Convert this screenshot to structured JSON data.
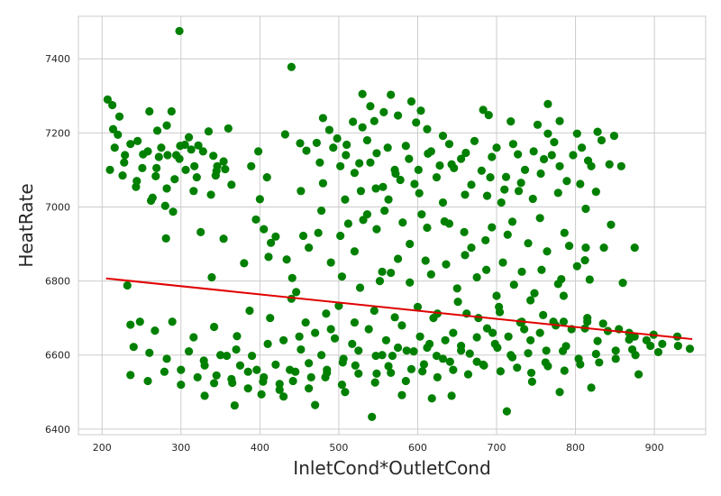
{
  "chart_data": {
    "type": "scatter",
    "title": "",
    "xlabel": "InletCond*OutletCond",
    "ylabel": "HeatRate",
    "xlim": [
      170,
      965
    ],
    "ylim": [
      6385,
      7515
    ],
    "x_ticks": [
      200,
      300,
      400,
      500,
      600,
      700,
      800,
      900
    ],
    "y_ticks": [
      6400,
      6600,
      6800,
      7000,
      7200,
      7400
    ],
    "grid": true,
    "colors": {
      "points": "#008000",
      "trend": "#e00000",
      "grid": "#cccccc",
      "frame": "#cccccc"
    },
    "points": [
      [
        298,
        7475
      ],
      [
        440,
        7378
      ],
      [
        530,
        7305
      ],
      [
        566,
        7303
      ],
      [
        540,
        7272
      ],
      [
        592,
        7285
      ],
      [
        765,
        7278
      ],
      [
        683,
        7262
      ],
      [
        604,
        7260
      ],
      [
        207,
        7290
      ],
      [
        213,
        7275
      ],
      [
        260,
        7258
      ],
      [
        288,
        7258
      ],
      [
        480,
        7240
      ],
      [
        488,
        7208
      ],
      [
        530,
        7215
      ],
      [
        557,
        7256
      ],
      [
        575,
        7247
      ],
      [
        498,
        7185
      ],
      [
        518,
        7230
      ],
      [
        545,
        7232
      ],
      [
        598,
        7228
      ],
      [
        612,
        7210
      ],
      [
        632,
        7192
      ],
      [
        690,
        7248
      ],
      [
        718,
        7231
      ],
      [
        752,
        7222
      ],
      [
        780,
        7232
      ],
      [
        765,
        7198
      ],
      [
        802,
        7198
      ],
      [
        828,
        7203
      ],
      [
        849,
        7192
      ],
      [
        222,
        7244
      ],
      [
        245,
        7178
      ],
      [
        270,
        7206
      ],
      [
        282,
        7220
      ],
      [
        310,
        7188
      ],
      [
        335,
        7204
      ],
      [
        360,
        7212
      ],
      [
        398,
        7150
      ],
      [
        432,
        7196
      ],
      [
        451,
        7172
      ],
      [
        472,
        7173
      ],
      [
        510,
        7168
      ],
      [
        548,
        7145
      ],
      [
        585,
        7165
      ],
      [
        613,
        7144
      ],
      [
        640,
        7170
      ],
      [
        661,
        7146
      ],
      [
        700,
        7160
      ],
      [
        727,
        7142
      ],
      [
        770,
        7140
      ],
      [
        808,
        7160
      ],
      [
        216,
        7160
      ],
      [
        228,
        7120
      ],
      [
        252,
        7142
      ],
      [
        269,
        7105
      ],
      [
        283,
        7140
      ],
      [
        298,
        7130
      ],
      [
        306,
        7100
      ],
      [
        322,
        7166
      ],
      [
        345,
        7097
      ],
      [
        354,
        7123
      ],
      [
        502,
        7110
      ],
      [
        520,
        7092
      ],
      [
        540,
        7120
      ],
      [
        572,
        7090
      ],
      [
        601,
        7100
      ],
      [
        628,
        7112
      ],
      [
        655,
        7130
      ],
      [
        681,
        7098
      ],
      [
        712,
        7081
      ],
      [
        736,
        7100
      ],
      [
        760,
        7129
      ],
      [
        780,
        7110
      ],
      [
        820,
        7110
      ],
      [
        843,
        7115
      ],
      [
        243,
        7054
      ],
      [
        268,
        7083
      ],
      [
        292,
        7075
      ],
      [
        316,
        7043
      ],
      [
        338,
        7033
      ],
      [
        400,
        7021
      ],
      [
        452,
        7043
      ],
      [
        480,
        7064
      ],
      [
        508,
        7020
      ],
      [
        528,
        7043
      ],
      [
        556,
        7054
      ],
      [
        578,
        7073
      ],
      [
        602,
        7037
      ],
      [
        632,
        7012
      ],
      [
        660,
        7033
      ],
      [
        688,
        7030
      ],
      [
        706,
        7012
      ],
      [
        728,
        7043
      ],
      [
        746,
        7022
      ],
      [
        778,
        7038
      ],
      [
        806,
        7062
      ],
      [
        826,
        7041
      ],
      [
        262,
        7017
      ],
      [
        280,
        7003
      ],
      [
        290,
        6987
      ],
      [
        325,
        6932
      ],
      [
        354,
        6914
      ],
      [
        395,
        6966
      ],
      [
        414,
        6903
      ],
      [
        434,
        6858
      ],
      [
        455,
        6922
      ],
      [
        474,
        6930
      ],
      [
        502,
        6922
      ],
      [
        531,
        6965
      ],
      [
        548,
        6940
      ],
      [
        581,
        6958
      ],
      [
        612,
        6944
      ],
      [
        634,
        6961
      ],
      [
        659,
        6932
      ],
      [
        686,
        6910
      ],
      [
        714,
        6925
      ],
      [
        740,
        6902
      ],
      [
        764,
        6880
      ],
      [
        792,
        6895
      ],
      [
        812,
        6856
      ],
      [
        845,
        6952
      ],
      [
        875,
        6890
      ],
      [
        232,
        6788
      ],
      [
        281,
        6915
      ],
      [
        339,
        6810
      ],
      [
        380,
        6848
      ],
      [
        411,
        6865
      ],
      [
        446,
        6770
      ],
      [
        504,
        6812
      ],
      [
        527,
        6782
      ],
      [
        552,
        6800
      ],
      [
        566,
        6822
      ],
      [
        590,
        6796
      ],
      [
        617,
        6818
      ],
      [
        650,
        6780
      ],
      [
        675,
        6810
      ],
      [
        700,
        6760
      ],
      [
        722,
        6790
      ],
      [
        748,
        6767
      ],
      [
        778,
        6792
      ],
      [
        818,
        6804
      ],
      [
        860,
        6795
      ],
      [
        236,
        6682
      ],
      [
        248,
        6690
      ],
      [
        267,
        6666
      ],
      [
        289,
        6690
      ],
      [
        316,
        6648
      ],
      [
        342,
        6676
      ],
      [
        371,
        6651
      ],
      [
        387,
        6720
      ],
      [
        413,
        6700
      ],
      [
        440,
        6752
      ],
      [
        458,
        6688
      ],
      [
        484,
        6712
      ],
      [
        500,
        6733
      ],
      [
        520,
        6688
      ],
      [
        545,
        6720
      ],
      [
        571,
        6702
      ],
      [
        600,
        6730
      ],
      [
        625,
        6712
      ],
      [
        651,
        6744
      ],
      [
        677,
        6700
      ],
      [
        704,
        6716
      ],
      [
        732,
        6690
      ],
      [
        759,
        6708
      ],
      [
        785,
        6690
      ],
      [
        812,
        6672
      ],
      [
        841,
        6665
      ],
      [
        868,
        6660
      ],
      [
        899,
        6655
      ],
      [
        929,
        6650
      ],
      [
        945,
        6617
      ],
      [
        240,
        6622
      ],
      [
        260,
        6606
      ],
      [
        282,
        6590
      ],
      [
        310,
        6610
      ],
      [
        329,
        6585
      ],
      [
        358,
        6598
      ],
      [
        375,
        6572
      ],
      [
        396,
        6560
      ],
      [
        420,
        6574
      ],
      [
        438,
        6560
      ],
      [
        462,
        6578
      ],
      [
        485,
        6552
      ],
      [
        506,
        6590
      ],
      [
        521,
        6572
      ],
      [
        547,
        6598
      ],
      [
        563,
        6570
      ],
      [
        586,
        6612
      ],
      [
        608,
        6575
      ],
      [
        624,
        6598
      ],
      [
        641,
        6582
      ],
      [
        666,
        6604
      ],
      [
        683,
        6574
      ],
      [
        701,
        6620
      ],
      [
        720,
        6594
      ],
      [
        740,
        6605
      ],
      [
        762,
        6580
      ],
      [
        784,
        6611
      ],
      [
        804,
        6590
      ],
      [
        826,
        6603
      ],
      [
        851,
        6612
      ],
      [
        872,
        6615
      ],
      [
        895,
        6625
      ],
      [
        236,
        6546
      ],
      [
        258,
        6530
      ],
      [
        279,
        6555
      ],
      [
        300,
        6520
      ],
      [
        321,
        6540
      ],
      [
        342,
        6524
      ],
      [
        364,
        6535
      ],
      [
        385,
        6510
      ],
      [
        404,
        6528
      ],
      [
        425,
        6506
      ],
      [
        442,
        6530
      ],
      [
        462,
        6510
      ],
      [
        483,
        6540
      ],
      [
        504,
        6520
      ],
      [
        525,
        6550
      ],
      [
        546,
        6526
      ],
      [
        566,
        6552
      ],
      [
        585,
        6530
      ],
      [
        606,
        6556
      ],
      [
        625,
        6540
      ],
      [
        645,
        6560
      ],
      [
        664,
        6548
      ],
      [
        684,
        6572
      ],
      [
        705,
        6556
      ],
      [
        726,
        6566
      ],
      [
        744,
        6552
      ],
      [
        765,
        6570
      ],
      [
        786,
        6558
      ],
      [
        806,
        6575
      ],
      [
        830,
        6580
      ],
      [
        851,
        6590
      ],
      [
        876,
        6600
      ],
      [
        905,
        6608
      ],
      [
        330,
        6490
      ],
      [
        368,
        6464
      ],
      [
        402,
        6494
      ],
      [
        430,
        6488
      ],
      [
        470,
        6465
      ],
      [
        508,
        6500
      ],
      [
        542,
        6433
      ],
      [
        580,
        6492
      ],
      [
        618,
        6483
      ],
      [
        643,
        6490
      ],
      [
        713,
        6448
      ],
      [
        780,
        6500
      ],
      [
        820,
        6512
      ],
      [
        880,
        6548
      ],
      [
        745,
        6528
      ],
      [
        505,
        6580
      ],
      [
        548,
        6550
      ],
      [
        592,
        6562
      ],
      [
        632,
        6590
      ],
      [
        675,
        6582
      ],
      [
        718,
        6600
      ],
      [
        763,
        6612
      ],
      [
        525,
        6612
      ],
      [
        568,
        6598
      ],
      [
        612,
        6620
      ],
      [
        655,
        6612
      ],
      [
        698,
        6630
      ],
      [
        743,
        6640
      ],
      [
        788,
        6624
      ],
      [
        828,
        6638
      ],
      [
        868,
        6642
      ],
      [
        478,
        6600
      ],
      [
        517,
        6630
      ],
      [
        560,
        6640
      ],
      [
        603,
        6650
      ],
      [
        645,
        6660
      ],
      [
        688,
        6672
      ],
      [
        730,
        6688
      ],
      [
        772,
        6690
      ],
      [
        815,
        6700
      ],
      [
        452,
        6615
      ],
      [
        495,
        6645
      ],
      [
        538,
        6670
      ],
      [
        580,
        6680
      ],
      [
        620,
        6700
      ],
      [
        662,
        6712
      ],
      [
        703,
        6730
      ],
      [
        743,
        6748
      ],
      [
        785,
        6760
      ],
      [
        300,
        6560
      ],
      [
        330,
        6572
      ],
      [
        350,
        6600
      ],
      [
        370,
        6615
      ],
      [
        390,
        6598
      ],
      [
        410,
        6630
      ],
      [
        430,
        6640
      ],
      [
        450,
        6650
      ],
      [
        470,
        6660
      ],
      [
        490,
        6670
      ],
      [
        345,
        6545
      ],
      [
        365,
        6525
      ],
      [
        385,
        6555
      ],
      [
        405,
        6540
      ],
      [
        425,
        6522
      ],
      [
        445,
        6555
      ],
      [
        465,
        6540
      ],
      [
        485,
        6560
      ],
      [
        555,
        6600
      ],
      [
        575,
        6620
      ],
      [
        595,
        6610
      ],
      [
        615,
        6630
      ],
      [
        635,
        6640
      ],
      [
        655,
        6625
      ],
      [
        675,
        6648
      ],
      [
        695,
        6660
      ],
      [
        715,
        6650
      ],
      [
        735,
        6670
      ],
      [
        755,
        6660
      ],
      [
        775,
        6680
      ],
      [
        795,
        6670
      ],
      [
        815,
        6690
      ],
      [
        835,
        6685
      ],
      [
        855,
        6670
      ],
      [
        875,
        6650
      ],
      [
        890,
        6640
      ],
      [
        910,
        6630
      ],
      [
        930,
        6625
      ],
      [
        214,
        7210
      ],
      [
        220,
        7195
      ],
      [
        236,
        7170
      ],
      [
        258,
        7150
      ],
      [
        275,
        7160
      ],
      [
        294,
        7140
      ],
      [
        305,
        7168
      ],
      [
        317,
        7110
      ],
      [
        328,
        7150
      ],
      [
        341,
        7138
      ],
      [
        356,
        7102
      ],
      [
        229,
        7140
      ],
      [
        251,
        7105
      ],
      [
        272,
        7135
      ],
      [
        299,
        7165
      ],
      [
        313,
        7155
      ],
      [
        346,
        7110
      ],
      [
        459,
        7152
      ],
      [
        476,
        7120
      ],
      [
        493,
        7160
      ],
      [
        509,
        7140
      ],
      [
        526,
        7118
      ],
      [
        536,
        7180
      ],
      [
        562,
        7160
      ],
      [
        589,
        7130
      ],
      [
        617,
        7150
      ],
      [
        643,
        7115
      ],
      [
        672,
        7178
      ],
      [
        694,
        7135
      ],
      [
        721,
        7170
      ],
      [
        747,
        7150
      ],
      [
        773,
        7175
      ],
      [
        797,
        7140
      ],
      [
        816,
        7125
      ],
      [
        833,
        7180
      ],
      [
        858,
        7110
      ],
      [
        547,
        7050
      ],
      [
        563,
        7020
      ],
      [
        571,
        7100
      ],
      [
        596,
        7062
      ],
      [
        624,
        7080
      ],
      [
        646,
        7105
      ],
      [
        668,
        7060
      ],
      [
        692,
        7080
      ],
      [
        710,
        7047
      ],
      [
        731,
        7065
      ],
      [
        756,
        7090
      ],
      [
        789,
        7070
      ],
      [
        813,
        6995
      ],
      [
        478,
        6990
      ],
      [
        512,
        6955
      ],
      [
        536,
        6980
      ],
      [
        558,
        6990
      ],
      [
        590,
        6900
      ],
      [
        605,
        6980
      ],
      [
        640,
        6955
      ],
      [
        668,
        6890
      ],
      [
        694,
        6945
      ],
      [
        720,
        6960
      ],
      [
        755,
        6970
      ],
      [
        786,
        6930
      ],
      [
        813,
        6890
      ],
      [
        836,
        6890
      ],
      [
        210,
        7100
      ],
      [
        226,
        7085
      ],
      [
        244,
        7070
      ],
      [
        264,
        7025
      ],
      [
        282,
        7050
      ],
      [
        320,
        7080
      ],
      [
        344,
        7085
      ],
      [
        364,
        7060
      ],
      [
        389,
        7110
      ],
      [
        409,
        7080
      ],
      [
        405,
        6940
      ],
      [
        420,
        6920
      ],
      [
        441,
        6808
      ],
      [
        462,
        6890
      ],
      [
        490,
        6850
      ],
      [
        520,
        6880
      ],
      [
        555,
        6825
      ],
      [
        575,
        6860
      ],
      [
        610,
        6855
      ],
      [
        636,
        6845
      ],
      [
        660,
        6870
      ],
      [
        687,
        6830
      ],
      [
        708,
        6850
      ],
      [
        732,
        6825
      ],
      [
        757,
        6830
      ],
      [
        782,
        6805
      ],
      [
        802,
        6840
      ]
    ],
    "trend_line": {
      "x": [
        205,
        948
      ],
      "y": [
        6807,
        6643
      ]
    }
  }
}
